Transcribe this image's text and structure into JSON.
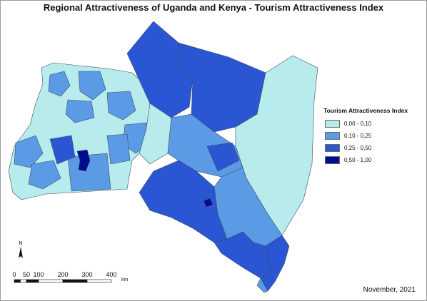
{
  "title": "Regional Attractiveness of Uganda and Kenya - Tourism Attractiveness Index",
  "legend": {
    "title": "Tourism Attractiveness Index",
    "classes": [
      {
        "label": "0,00 - 0,10",
        "color": "#b8ecec"
      },
      {
        "label": "0,10 - 0,25",
        "color": "#5b9be6"
      },
      {
        "label": "0,25 - 0,50",
        "color": "#2b56d3"
      },
      {
        "label": "0,50 - 1,00",
        "color": "#020c8e"
      }
    ]
  },
  "north_arrow": {
    "label": "N"
  },
  "scale_bar": {
    "ticks": [
      "0",
      "50",
      "100",
      "200",
      "300",
      "400"
    ],
    "unit": "km"
  },
  "footer": {
    "date": "November, 2021"
  },
  "colors": {
    "boundary": "#3c4b66",
    "background": "#ffffff"
  }
}
